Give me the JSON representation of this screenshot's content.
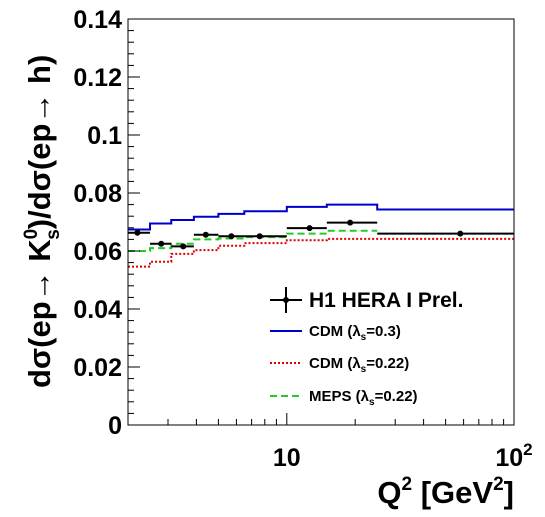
{
  "chart_data": {
    "type": "line",
    "xscale": "log",
    "xlim": [
      2,
      100
    ],
    "ylim": [
      0,
      0.14
    ],
    "grid": false,
    "legend_position": "bottom-right",
    "xlabel": {
      "base": "Q",
      "exp": "2",
      "unit_open": " [GeV",
      "unit_exp": "2",
      "unit_close": "]"
    },
    "ylabel": {
      "part1": "dσ(ep→ K",
      "sup": "0",
      "sub": "s",
      "part2": ")/dσ(ep→ h)"
    },
    "x_ticks": [
      {
        "value": 10,
        "base": "10",
        "exp": ""
      },
      {
        "value": 100,
        "base": "10",
        "exp": "2"
      }
    ],
    "y_ticks": [
      {
        "value": 0,
        "label": "0"
      },
      {
        "value": 0.02,
        "label": "0.02"
      },
      {
        "value": 0.04,
        "label": "0.04"
      },
      {
        "value": 0.06,
        "label": "0.06"
      },
      {
        "value": 0.08,
        "label": "0.08"
      },
      {
        "value": 0.1,
        "label": "0.1"
      },
      {
        "value": 0.12,
        "label": "0.12"
      },
      {
        "value": 0.14,
        "label": "0.14"
      }
    ],
    "series": [
      {
        "name": "H1 HERA I Prel.",
        "kind": "points",
        "color": "#000000",
        "points": [
          {
            "x": 2.2,
            "y": 0.0663,
            "xerr": [
              2.0,
              2.5
            ],
            "yerr": 0.0006
          },
          {
            "x": 2.8,
            "y": 0.0625,
            "xerr": [
              2.5,
              3.1
            ],
            "yerr": 0.0006
          },
          {
            "x": 3.5,
            "y": 0.0616,
            "xerr": [
              3.1,
              3.9
            ],
            "yerr": 0.0006
          },
          {
            "x": 4.4,
            "y": 0.0656,
            "xerr": [
              3.9,
              5.0
            ],
            "yerr": 0.0006
          },
          {
            "x": 5.7,
            "y": 0.0651,
            "xerr": [
              5.0,
              6.5
            ],
            "yerr": 0.0006
          },
          {
            "x": 7.6,
            "y": 0.0651,
            "xerr": [
              6.5,
              10.0
            ],
            "yerr": 0.0006
          },
          {
            "x": 12.6,
            "y": 0.0679,
            "xerr": [
              10.0,
              15.0
            ],
            "yerr": 0.0008
          },
          {
            "x": 19.0,
            "y": 0.0698,
            "xerr": [
              15.0,
              25.0
            ],
            "yerr": 0.0008
          },
          {
            "x": 58.0,
            "y": 0.066,
            "xerr": [
              25.0,
              100.0
            ],
            "yerr": 0.0008
          }
        ]
      },
      {
        "name": "CDM (λs=0.3)",
        "label_main": "CDM (λ",
        "label_sub": "s",
        "label_tail": "=0.3)",
        "kind": "step",
        "color": "#0000cc",
        "dash": "",
        "edges": [
          2.0,
          2.5,
          3.1,
          3.9,
          5.0,
          6.5,
          10.0,
          15.0,
          25.0,
          100.0
        ],
        "values": [
          0.0674,
          0.0695,
          0.0707,
          0.0718,
          0.0728,
          0.0737,
          0.0752,
          0.076,
          0.0743
        ]
      },
      {
        "name": "CDM (λs=0.22)",
        "label_main": "CDM (λ",
        "label_sub": "s",
        "label_tail": "=0.22)",
        "kind": "step",
        "color": "#dd0000",
        "dash": "2,2",
        "edges": [
          2.0,
          2.5,
          3.1,
          3.9,
          5.0,
          6.5,
          10.0,
          15.0,
          25.0,
          100.0
        ],
        "values": [
          0.0546,
          0.0563,
          0.059,
          0.0603,
          0.0618,
          0.0627,
          0.0637,
          0.0642,
          0.0642
        ]
      },
      {
        "name": "MEPS (λs=0.22)",
        "label_main": "MEPS (λ",
        "label_sub": "s",
        "label_tail": "=0.22)",
        "kind": "step",
        "color": "#22cc22",
        "dash": "7,4",
        "edges": [
          2.0,
          2.5,
          3.1,
          3.9,
          5.0,
          6.5,
          10.0,
          15.0,
          25.0
        ],
        "values": [
          0.06,
          0.061,
          0.0625,
          0.064,
          0.0643,
          0.0648,
          0.066,
          0.067
        ]
      }
    ]
  }
}
